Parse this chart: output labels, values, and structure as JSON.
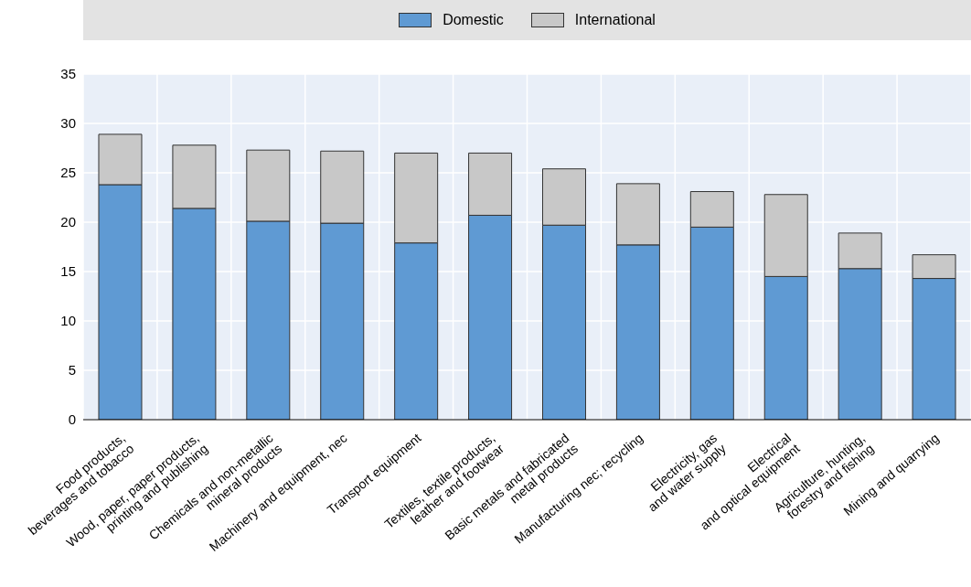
{
  "chart_data": {
    "type": "bar",
    "stacked": true,
    "legend": "top",
    "grid": true,
    "categories": [
      "Food products,\nbeverages and tobacco",
      "Wood, paper, paper products,\nprinting and publishing",
      "Chemicals and non-metallic\nmineral products",
      "Machinery and equipment, nec",
      "Transport equipment",
      "Textiles, textile products,\nleather and footwear",
      "Basic metals and fabricated\nmetal products",
      "Manufacturing nec; recycling",
      "Electricity, gas\nand water supply",
      "Electrical\nand optical equipment",
      "Agriculture, hunting,\nforestry and fishing",
      "Mining and quarrying"
    ],
    "series": [
      {
        "name": "Domestic",
        "color": "#5f9ad3",
        "values": [
          23.8,
          21.4,
          20.1,
          19.9,
          17.9,
          20.7,
          19.7,
          17.7,
          19.5,
          14.5,
          15.3,
          14.3
        ]
      },
      {
        "name": "International",
        "color": "#c8c8c8",
        "values": [
          5.1,
          6.4,
          7.2,
          7.3,
          9.1,
          6.3,
          5.7,
          6.2,
          3.6,
          8.3,
          3.6,
          2.4
        ]
      }
    ],
    "ylim": [
      0,
      35
    ],
    "yticks": [
      0,
      5,
      10,
      15,
      20,
      25,
      30,
      35
    ]
  }
}
